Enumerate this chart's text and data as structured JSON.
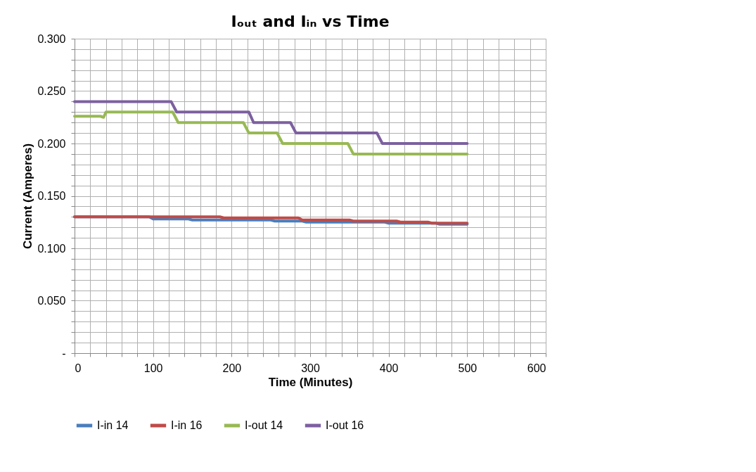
{
  "chart_data": {
    "type": "line",
    "title": "Iₒᵤₜ and Iᵢₙ vs Time",
    "xlabel": "Time (Minutes)",
    "ylabel": "Current (Amperes)",
    "xlim": [
      0,
      600
    ],
    "xticks": [
      0,
      100,
      200,
      300,
      400,
      500,
      600
    ],
    "ylim": [
      0,
      0.3
    ],
    "yticks": [
      {
        "value": 0,
        "label": "-"
      },
      {
        "value": 0.05,
        "label": "0.050"
      },
      {
        "value": 0.1,
        "label": "0.100"
      },
      {
        "value": 0.15,
        "label": "0.150"
      },
      {
        "value": 0.2,
        "label": "0.200"
      },
      {
        "value": 0.25,
        "label": "0.250"
      },
      {
        "value": 0.3,
        "label": "0.300"
      }
    ],
    "grid": true,
    "legend": "bottom",
    "marker": "none",
    "line_style": "solid",
    "series": [
      {
        "name": "I-in 14",
        "color": "#4a7ebb",
        "x": [
          0,
          95,
          100,
          145,
          150,
          250,
          255,
          290,
          295,
          395,
          400,
          460,
          465,
          500
        ],
        "values": [
          0.13,
          0.13,
          0.128,
          0.128,
          0.127,
          0.127,
          0.126,
          0.126,
          0.125,
          0.125,
          0.124,
          0.124,
          0.123,
          0.123
        ]
      },
      {
        "name": "I-in 16",
        "color": "#be4b48",
        "x": [
          0,
          185,
          190,
          285,
          290,
          350,
          355,
          410,
          415,
          450,
          455,
          500
        ],
        "values": [
          0.13,
          0.13,
          0.129,
          0.129,
          0.127,
          0.127,
          0.126,
          0.126,
          0.125,
          0.125,
          0.124,
          0.124
        ]
      },
      {
        "name": "I-out 14",
        "color": "#98b954",
        "x": [
          0,
          33,
          37,
          40,
          125,
          132,
          215,
          222,
          258,
          265,
          348,
          355,
          500
        ],
        "values": [
          0.226,
          0.226,
          0.225,
          0.23,
          0.23,
          0.22,
          0.22,
          0.21,
          0.21,
          0.2,
          0.2,
          0.19,
          0.19
        ]
      },
      {
        "name": "I-out 16",
        "color": "#7d60a0",
        "x": [
          0,
          123,
          130,
          222,
          228,
          275,
          282,
          385,
          392,
          500
        ],
        "values": [
          0.24,
          0.24,
          0.23,
          0.23,
          0.22,
          0.22,
          0.21,
          0.21,
          0.2,
          0.2
        ]
      }
    ]
  }
}
